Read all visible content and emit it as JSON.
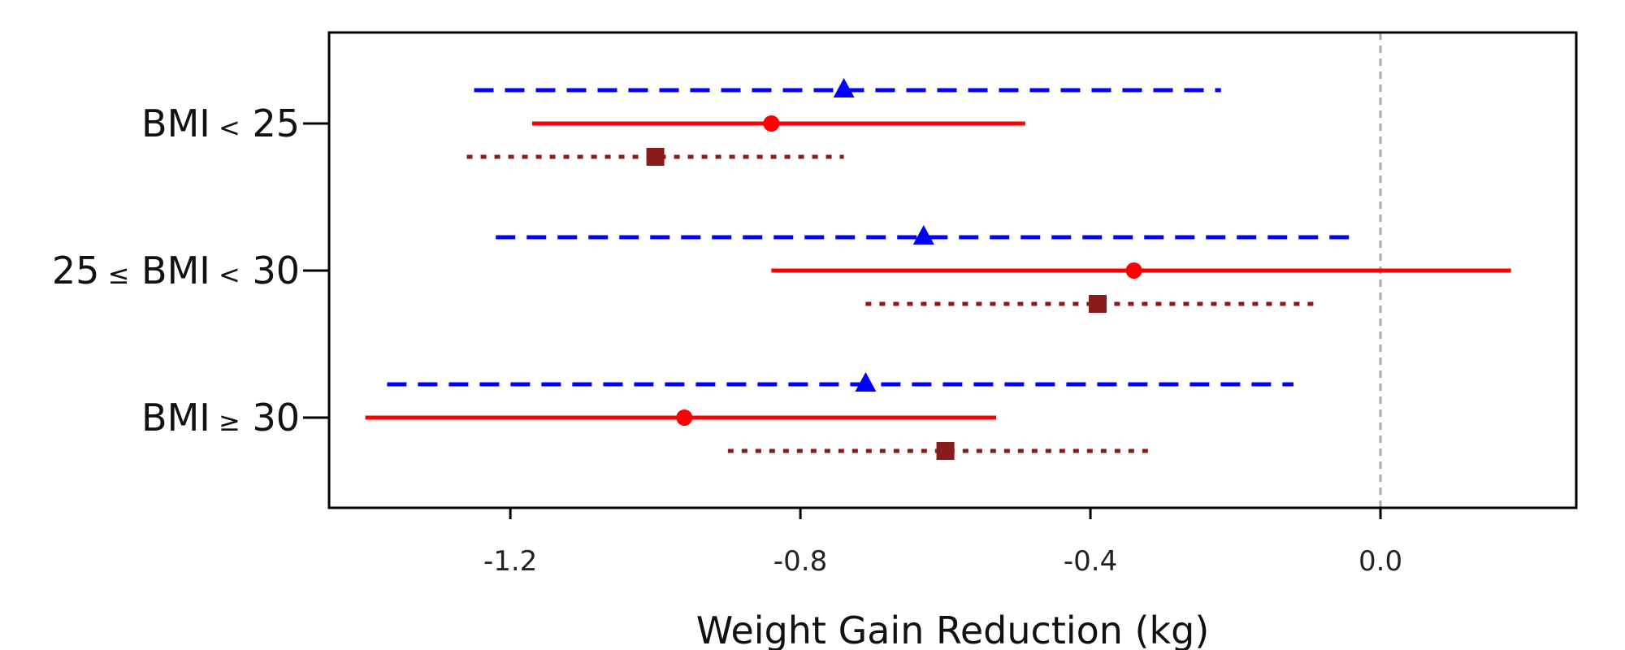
{
  "chart_data": {
    "type": "forest",
    "title": "",
    "xlabel": "Weight Gain Reduction (kg)",
    "ylabel": "",
    "xlim": [
      -1.45,
      0.27
    ],
    "xticks": [
      -1.2,
      -0.8,
      -0.4,
      0.0
    ],
    "xtick_labels": [
      "-1.2",
      "-0.8",
      "-0.4",
      "0.0"
    ],
    "reference_line": 0.0,
    "grid": false,
    "legend": null,
    "categories": [
      "BMI < 25",
      "25 ≤ BMI < 30",
      "BMI ≥ 30"
    ],
    "category_labels": [
      {
        "pre": "",
        "rel": "",
        "mid": "BMI",
        "rel2": "<",
        "post": "25"
      },
      {
        "pre": "25",
        "rel": "≤",
        "mid": "BMI",
        "rel2": "<",
        "post": "30"
      },
      {
        "pre": "",
        "rel": "",
        "mid": "BMI",
        "rel2": "≥",
        "post": "30"
      }
    ],
    "series": [
      {
        "marker": "triangle",
        "line_style": "dashed",
        "color": "#0000ff",
        "estimates": [
          -0.74,
          -0.63,
          -0.71
        ],
        "lower": [
          -1.25,
          -1.22,
          -1.37
        ],
        "upper": [
          -0.22,
          -0.03,
          -0.12
        ]
      },
      {
        "marker": "circle",
        "line_style": "solid",
        "color": "#ff0000",
        "estimates": [
          -0.84,
          -0.34,
          -0.96
        ],
        "lower": [
          -1.17,
          -0.84,
          -1.4
        ],
        "upper": [
          -0.49,
          0.18,
          -0.53
        ]
      },
      {
        "marker": "square",
        "line_style": "dotted",
        "color": "#8b1a1a",
        "estimates": [
          -1.0,
          -0.39,
          -0.6
        ],
        "lower": [
          -1.26,
          -0.71,
          -0.9
        ],
        "upper": [
          -0.74,
          -0.09,
          -0.31
        ]
      }
    ]
  }
}
